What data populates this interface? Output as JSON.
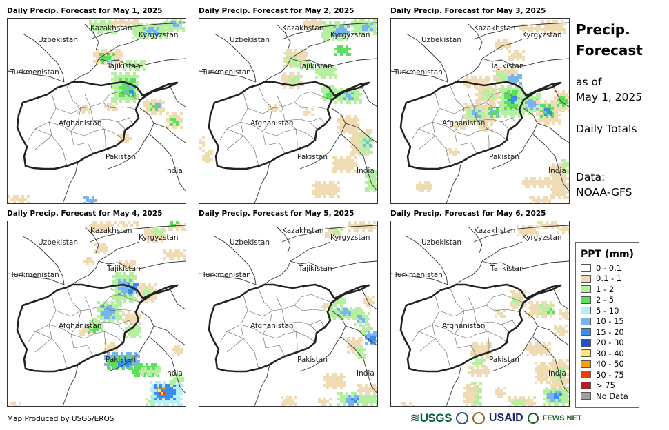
{
  "panels": [
    {
      "title": "Daily Precip. Forecast for May 1, 2025",
      "variant": 1
    },
    {
      "title": "Daily Precip. Forecast for May 2, 2025",
      "variant": 2
    },
    {
      "title": "Daily Precip. Forecast for May 3, 2025",
      "variant": 3
    },
    {
      "title": "Daily Precip. Forecast for May 4, 2025",
      "variant": 4
    },
    {
      "title": "Daily Precip. Forecast for May 5, 2025",
      "variant": 5
    },
    {
      "title": "Daily Precip. Forecast for May 6, 2025",
      "variant": 6
    }
  ],
  "country_labels": {
    "kazakhstan": "Kazakhstan",
    "kyrgyzstan": "Kyrgyzstan",
    "uzbekistan": "Uzbekistan",
    "tajikistan": "Tajikistan",
    "turkmenistan": "Turkmenistan",
    "afghanistan": "Afghanistan",
    "pakistan": "Pakistan",
    "india": "India"
  },
  "sidebar": {
    "title_line1": "Precip.",
    "title_line2": "Forecast",
    "asof_line1": "as of",
    "asof_line2": "May 1, 2025",
    "daily": "Daily Totals",
    "data_line1": "Data:",
    "data_line2": "NOAA-GFS"
  },
  "legend": {
    "title": "PPT (mm)",
    "items": [
      {
        "label": "0 - 0.1",
        "color": "#ffffff"
      },
      {
        "label": "0.1 - 1",
        "color": "#f0dcb4"
      },
      {
        "label": "1 - 2",
        "color": "#b4f0a0"
      },
      {
        "label": "2 - 5",
        "color": "#5ae05a"
      },
      {
        "label": "5 - 10",
        "color": "#b4f0f0"
      },
      {
        "label": "10 - 15",
        "color": "#78b4f0"
      },
      {
        "label": "15 - 20",
        "color": "#3c8cf0"
      },
      {
        "label": "20 - 30",
        "color": "#1e50d2"
      },
      {
        "label": "30 - 40",
        "color": "#ffe678"
      },
      {
        "label": "40 - 50",
        "color": "#ffa000"
      },
      {
        "label": "50 - 75",
        "color": "#f03c00"
      },
      {
        "label": "> 75",
        "color": "#b41e1e"
      },
      {
        "label": "No Data",
        "color": "#a0a0a0"
      }
    ]
  },
  "footer": "Map Produced by USGS/EROS",
  "logos": {
    "usgs": "≋USGS",
    "usaid": "USAID",
    "fews": "FEWS NET"
  }
}
